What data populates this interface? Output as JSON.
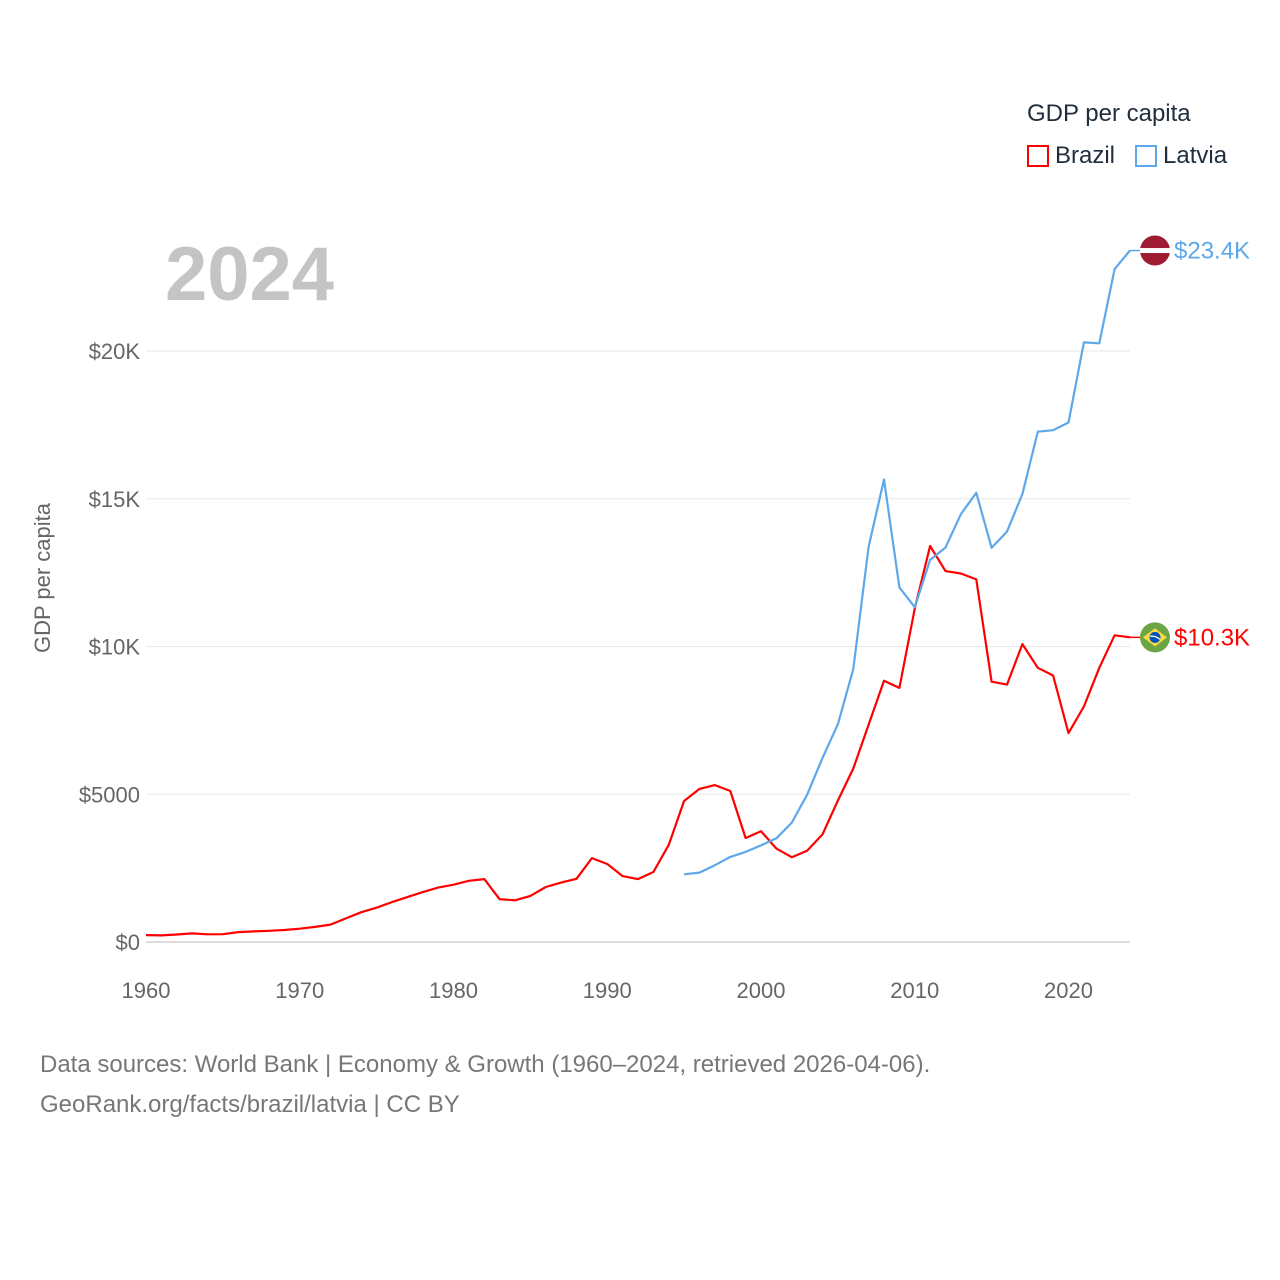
{
  "chart_data": {
    "type": "line",
    "title": "GDP per capita",
    "year_label": "2024",
    "xlabel": "",
    "ylabel": "GDP per capita",
    "xlim": [
      1960,
      2024
    ],
    "ylim": [
      0,
      25000
    ],
    "x_ticks": [
      1960,
      1970,
      1980,
      1990,
      2000,
      2010,
      2020
    ],
    "x_tick_labels": [
      "1960",
      "1970",
      "1980",
      "1990",
      "2000",
      "2010",
      "2020"
    ],
    "y_ticks": [
      0,
      5000,
      10000,
      15000,
      20000
    ],
    "y_tick_labels": [
      "$0",
      "$5000",
      "$10K",
      "$15K",
      "$20K"
    ],
    "grid": true,
    "legend_placement": "top-right",
    "series": [
      {
        "name": "Brazil",
        "color": "#ff0000",
        "end_label": "$10.3K",
        "flag": "brazil-flag",
        "start_year": 1960,
        "values": [
          235,
          225,
          255,
          290,
          260,
          265,
          335,
          360,
          380,
          405,
          450,
          510,
          590,
          800,
          1010,
          1160,
          1350,
          1520,
          1690,
          1840,
          1940,
          2070,
          2130,
          1450,
          1410,
          1560,
          1860,
          2010,
          2140,
          2840,
          2640,
          2230,
          2130,
          2370,
          3290,
          4770,
          5180,
          5310,
          5110,
          3520,
          3750,
          3160,
          2870,
          3090,
          3640,
          4790,
          5870,
          7350,
          8840,
          8600,
          11290,
          13400,
          12550,
          12470,
          12270,
          8810,
          8710,
          10080,
          9280,
          9020,
          7070,
          7970,
          9280,
          10380,
          10310
        ]
      },
      {
        "name": "Latvia",
        "color": "#5da8ea",
        "end_label": "$23.4K",
        "flag": "latvia-flag",
        "start_year": 1995,
        "values": [
          2290,
          2350,
          2600,
          2880,
          3050,
          3270,
          3510,
          4040,
          4980,
          6230,
          7370,
          9240,
          13370,
          15650,
          12000,
          11330,
          12930,
          13350,
          14480,
          15200,
          13340,
          13890,
          15160,
          17270,
          17320,
          17580,
          20290,
          20260,
          22770,
          23400
        ]
      }
    ]
  },
  "footer": {
    "line1": "Data sources: World Bank | Economy & Growth (1960–2024, retrieved 2026-04-06).",
    "line2": "GeoRank.org/facts/brazil/latvia | CC BY"
  }
}
